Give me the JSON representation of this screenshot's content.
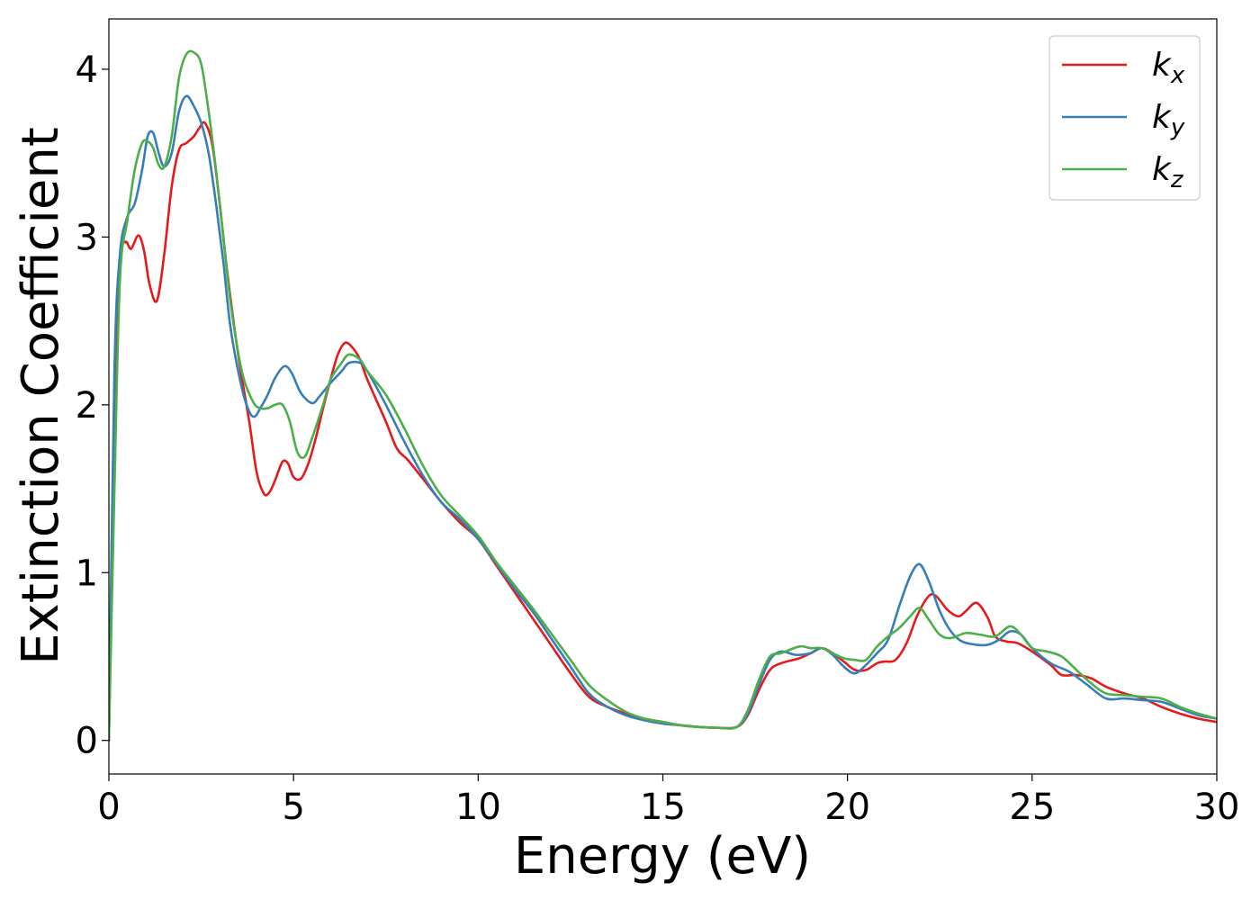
{
  "chart_data": {
    "type": "line",
    "title": "",
    "xlabel": "Energy (eV)",
    "ylabel": "Extinction Coefficient",
    "xlim": [
      0,
      30
    ],
    "ylim": [
      -0.2,
      4.3
    ],
    "xticks": [
      0,
      5,
      10,
      15,
      20,
      25,
      30
    ],
    "yticks": [
      0,
      1,
      2,
      3,
      4
    ],
    "grid": false,
    "legend_position": "top-right",
    "series": [
      {
        "name": "k",
        "subscript": "x",
        "color": "#e41a1c",
        "points": [
          [
            0,
            0
          ],
          [
            0.15,
            1.8
          ],
          [
            0.3,
            2.85
          ],
          [
            0.45,
            2.97
          ],
          [
            0.6,
            2.93
          ],
          [
            0.8,
            3.01
          ],
          [
            0.95,
            2.92
          ],
          [
            1.1,
            2.72
          ],
          [
            1.3,
            2.62
          ],
          [
            1.5,
            2.9
          ],
          [
            1.7,
            3.3
          ],
          [
            1.9,
            3.52
          ],
          [
            2.1,
            3.56
          ],
          [
            2.3,
            3.6
          ],
          [
            2.45,
            3.65
          ],
          [
            2.6,
            3.68
          ],
          [
            2.8,
            3.55
          ],
          [
            3.0,
            3.2
          ],
          [
            3.2,
            2.8
          ],
          [
            3.5,
            2.3
          ],
          [
            3.8,
            1.9
          ],
          [
            4.0,
            1.6
          ],
          [
            4.2,
            1.47
          ],
          [
            4.35,
            1.48
          ],
          [
            4.5,
            1.55
          ],
          [
            4.7,
            1.66
          ],
          [
            4.85,
            1.65
          ],
          [
            5.0,
            1.57
          ],
          [
            5.2,
            1.56
          ],
          [
            5.4,
            1.65
          ],
          [
            5.6,
            1.8
          ],
          [
            5.8,
            1.98
          ],
          [
            6.0,
            2.15
          ],
          [
            6.2,
            2.3
          ],
          [
            6.4,
            2.37
          ],
          [
            6.6,
            2.34
          ],
          [
            6.8,
            2.27
          ],
          [
            7.0,
            2.15
          ],
          [
            7.5,
            1.9
          ],
          [
            7.8,
            1.74
          ],
          [
            8.1,
            1.67
          ],
          [
            8.5,
            1.56
          ],
          [
            9.0,
            1.42
          ],
          [
            9.5,
            1.3
          ],
          [
            10.0,
            1.2
          ],
          [
            10.5,
            1.04
          ],
          [
            11.0,
            0.88
          ],
          [
            11.5,
            0.72
          ],
          [
            12.0,
            0.56
          ],
          [
            12.5,
            0.4
          ],
          [
            13.0,
            0.26
          ],
          [
            13.5,
            0.2
          ],
          [
            14.0,
            0.16
          ],
          [
            14.5,
            0.13
          ],
          [
            15.0,
            0.11
          ],
          [
            15.5,
            0.09
          ],
          [
            16.0,
            0.08
          ],
          [
            16.5,
            0.075
          ],
          [
            17.0,
            0.08
          ],
          [
            17.3,
            0.15
          ],
          [
            17.6,
            0.3
          ],
          [
            17.9,
            0.42
          ],
          [
            18.2,
            0.46
          ],
          [
            18.7,
            0.49
          ],
          [
            19.0,
            0.52
          ],
          [
            19.3,
            0.55
          ],
          [
            19.6,
            0.52
          ],
          [
            19.9,
            0.47
          ],
          [
            20.2,
            0.42
          ],
          [
            20.5,
            0.42
          ],
          [
            20.8,
            0.46
          ],
          [
            21.0,
            0.47
          ],
          [
            21.3,
            0.48
          ],
          [
            21.6,
            0.58
          ],
          [
            21.9,
            0.75
          ],
          [
            22.2,
            0.86
          ],
          [
            22.4,
            0.86
          ],
          [
            22.7,
            0.78
          ],
          [
            23.0,
            0.74
          ],
          [
            23.2,
            0.77
          ],
          [
            23.5,
            0.82
          ],
          [
            23.8,
            0.73
          ],
          [
            24.0,
            0.62
          ],
          [
            24.3,
            0.59
          ],
          [
            24.6,
            0.58
          ],
          [
            25.0,
            0.53
          ],
          [
            25.5,
            0.45
          ],
          [
            25.8,
            0.39
          ],
          [
            26.2,
            0.39
          ],
          [
            26.6,
            0.37
          ],
          [
            27.0,
            0.32
          ],
          [
            27.5,
            0.28
          ],
          [
            28.0,
            0.25
          ],
          [
            28.5,
            0.2
          ],
          [
            29.0,
            0.16
          ],
          [
            29.5,
            0.13
          ],
          [
            30.0,
            0.11
          ]
        ]
      },
      {
        "name": "k",
        "subscript": "y",
        "color": "#377eb8",
        "points": [
          [
            0,
            0
          ],
          [
            0.15,
            2.2
          ],
          [
            0.3,
            2.9
          ],
          [
            0.5,
            3.12
          ],
          [
            0.7,
            3.2
          ],
          [
            0.9,
            3.4
          ],
          [
            1.05,
            3.6
          ],
          [
            1.2,
            3.62
          ],
          [
            1.35,
            3.5
          ],
          [
            1.5,
            3.42
          ],
          [
            1.7,
            3.5
          ],
          [
            1.9,
            3.75
          ],
          [
            2.1,
            3.84
          ],
          [
            2.3,
            3.78
          ],
          [
            2.5,
            3.68
          ],
          [
            2.7,
            3.5
          ],
          [
            2.9,
            3.2
          ],
          [
            3.1,
            2.85
          ],
          [
            3.3,
            2.45
          ],
          [
            3.6,
            2.1
          ],
          [
            3.8,
            1.96
          ],
          [
            3.95,
            1.93
          ],
          [
            4.1,
            1.98
          ],
          [
            4.3,
            2.06
          ],
          [
            4.5,
            2.16
          ],
          [
            4.75,
            2.23
          ],
          [
            4.95,
            2.19
          ],
          [
            5.2,
            2.07
          ],
          [
            5.5,
            2.01
          ],
          [
            5.7,
            2.05
          ],
          [
            6.0,
            2.13
          ],
          [
            6.3,
            2.2
          ],
          [
            6.5,
            2.25
          ],
          [
            6.8,
            2.25
          ],
          [
            7.0,
            2.2
          ],
          [
            7.5,
            2.0
          ],
          [
            8.0,
            1.78
          ],
          [
            8.5,
            1.58
          ],
          [
            9.0,
            1.42
          ],
          [
            9.5,
            1.32
          ],
          [
            10.0,
            1.2
          ],
          [
            10.5,
            1.05
          ],
          [
            11.0,
            0.9
          ],
          [
            11.5,
            0.76
          ],
          [
            12.0,
            0.6
          ],
          [
            12.5,
            0.44
          ],
          [
            13.0,
            0.28
          ],
          [
            13.5,
            0.2
          ],
          [
            14.0,
            0.15
          ],
          [
            14.5,
            0.12
          ],
          [
            15.0,
            0.1
          ],
          [
            15.5,
            0.09
          ],
          [
            16.0,
            0.08
          ],
          [
            16.5,
            0.075
          ],
          [
            17.0,
            0.08
          ],
          [
            17.3,
            0.16
          ],
          [
            17.6,
            0.33
          ],
          [
            17.9,
            0.48
          ],
          [
            18.2,
            0.53
          ],
          [
            18.6,
            0.51
          ],
          [
            19.0,
            0.52
          ],
          [
            19.3,
            0.55
          ],
          [
            19.6,
            0.51
          ],
          [
            19.9,
            0.44
          ],
          [
            20.2,
            0.4
          ],
          [
            20.5,
            0.45
          ],
          [
            20.8,
            0.52
          ],
          [
            21.1,
            0.6
          ],
          [
            21.4,
            0.8
          ],
          [
            21.7,
            0.98
          ],
          [
            21.95,
            1.05
          ],
          [
            22.2,
            0.95
          ],
          [
            22.5,
            0.77
          ],
          [
            22.8,
            0.65
          ],
          [
            23.1,
            0.59
          ],
          [
            23.5,
            0.57
          ],
          [
            23.8,
            0.57
          ],
          [
            24.1,
            0.6
          ],
          [
            24.4,
            0.65
          ],
          [
            24.7,
            0.63
          ],
          [
            25.0,
            0.55
          ],
          [
            25.5,
            0.46
          ],
          [
            26.0,
            0.41
          ],
          [
            26.5,
            0.33
          ],
          [
            27.0,
            0.25
          ],
          [
            27.5,
            0.25
          ],
          [
            28.0,
            0.24
          ],
          [
            28.5,
            0.23
          ],
          [
            29.0,
            0.19
          ],
          [
            29.5,
            0.15
          ],
          [
            30.0,
            0.13
          ]
        ]
      },
      {
        "name": "k",
        "subscript": "z",
        "color": "#4daf4a",
        "points": [
          [
            0,
            0
          ],
          [
            0.15,
            1.5
          ],
          [
            0.3,
            2.75
          ],
          [
            0.5,
            3.1
          ],
          [
            0.7,
            3.4
          ],
          [
            0.9,
            3.56
          ],
          [
            1.05,
            3.57
          ],
          [
            1.2,
            3.53
          ],
          [
            1.35,
            3.43
          ],
          [
            1.5,
            3.42
          ],
          [
            1.7,
            3.6
          ],
          [
            1.9,
            3.95
          ],
          [
            2.1,
            4.09
          ],
          [
            2.3,
            4.1
          ],
          [
            2.5,
            4.03
          ],
          [
            2.7,
            3.75
          ],
          [
            2.9,
            3.4
          ],
          [
            3.1,
            3.0
          ],
          [
            3.3,
            2.6
          ],
          [
            3.6,
            2.2
          ],
          [
            3.9,
            2.02
          ],
          [
            4.1,
            1.98
          ],
          [
            4.3,
            1.98
          ],
          [
            4.5,
            2.0
          ],
          [
            4.7,
            2.0
          ],
          [
            4.9,
            1.9
          ],
          [
            5.1,
            1.72
          ],
          [
            5.3,
            1.69
          ],
          [
            5.5,
            1.8
          ],
          [
            5.8,
            2.0
          ],
          [
            6.0,
            2.15
          ],
          [
            6.3,
            2.25
          ],
          [
            6.5,
            2.3
          ],
          [
            6.8,
            2.27
          ],
          [
            7.0,
            2.2
          ],
          [
            7.5,
            2.06
          ],
          [
            8.0,
            1.86
          ],
          [
            8.5,
            1.64
          ],
          [
            9.0,
            1.46
          ],
          [
            9.5,
            1.34
          ],
          [
            10.0,
            1.22
          ],
          [
            10.5,
            1.06
          ],
          [
            11.0,
            0.92
          ],
          [
            11.5,
            0.78
          ],
          [
            12.0,
            0.63
          ],
          [
            12.5,
            0.48
          ],
          [
            13.0,
            0.33
          ],
          [
            13.5,
            0.24
          ],
          [
            14.0,
            0.17
          ],
          [
            14.5,
            0.13
          ],
          [
            15.0,
            0.11
          ],
          [
            15.5,
            0.09
          ],
          [
            16.0,
            0.08
          ],
          [
            16.5,
            0.075
          ],
          [
            17.0,
            0.08
          ],
          [
            17.3,
            0.18
          ],
          [
            17.6,
            0.36
          ],
          [
            17.9,
            0.5
          ],
          [
            18.2,
            0.52
          ],
          [
            18.7,
            0.56
          ],
          [
            19.0,
            0.55
          ],
          [
            19.3,
            0.55
          ],
          [
            19.6,
            0.52
          ],
          [
            19.9,
            0.49
          ],
          [
            20.2,
            0.48
          ],
          [
            20.5,
            0.48
          ],
          [
            20.8,
            0.56
          ],
          [
            21.1,
            0.62
          ],
          [
            21.4,
            0.67
          ],
          [
            21.7,
            0.74
          ],
          [
            21.95,
            0.79
          ],
          [
            22.2,
            0.72
          ],
          [
            22.5,
            0.63
          ],
          [
            22.8,
            0.61
          ],
          [
            23.2,
            0.64
          ],
          [
            23.6,
            0.63
          ],
          [
            24.0,
            0.62
          ],
          [
            24.4,
            0.68
          ],
          [
            24.7,
            0.63
          ],
          [
            25.0,
            0.55
          ],
          [
            25.4,
            0.53
          ],
          [
            25.8,
            0.5
          ],
          [
            26.2,
            0.42
          ],
          [
            26.6,
            0.34
          ],
          [
            27.0,
            0.28
          ],
          [
            27.5,
            0.27
          ],
          [
            28.0,
            0.26
          ],
          [
            28.5,
            0.25
          ],
          [
            29.0,
            0.2
          ],
          [
            29.5,
            0.16
          ],
          [
            30.0,
            0.13
          ]
        ]
      }
    ]
  }
}
